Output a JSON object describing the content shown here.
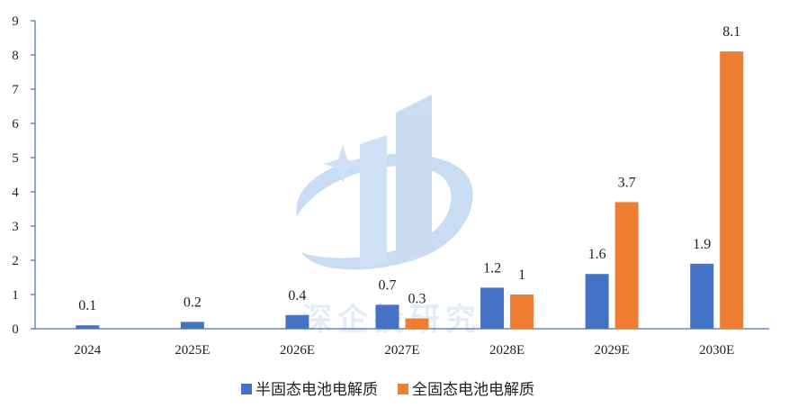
{
  "chart_data": {
    "type": "bar",
    "categories": [
      "2024",
      "2025E",
      "2026E",
      "2027E",
      "2028E",
      "2029E",
      "2030E"
    ],
    "series": [
      {
        "name": "半固态电池电解质",
        "color": "#4472c4",
        "values": [
          0.1,
          0.2,
          0.4,
          0.7,
          1.2,
          1.6,
          1.9
        ]
      },
      {
        "name": "全固态电池电解质",
        "color": "#ed7d31",
        "values": [
          null,
          null,
          null,
          0.3,
          1,
          3.7,
          8.1
        ]
      }
    ],
    "ylim": [
      0,
      9
    ],
    "yticks": [
      0,
      1,
      2,
      3,
      4,
      5,
      6,
      7,
      8,
      9
    ],
    "grid": false,
    "legend_position": "bottom"
  },
  "watermark": {
    "text": "深企投研究",
    "color": "#c9def4"
  }
}
